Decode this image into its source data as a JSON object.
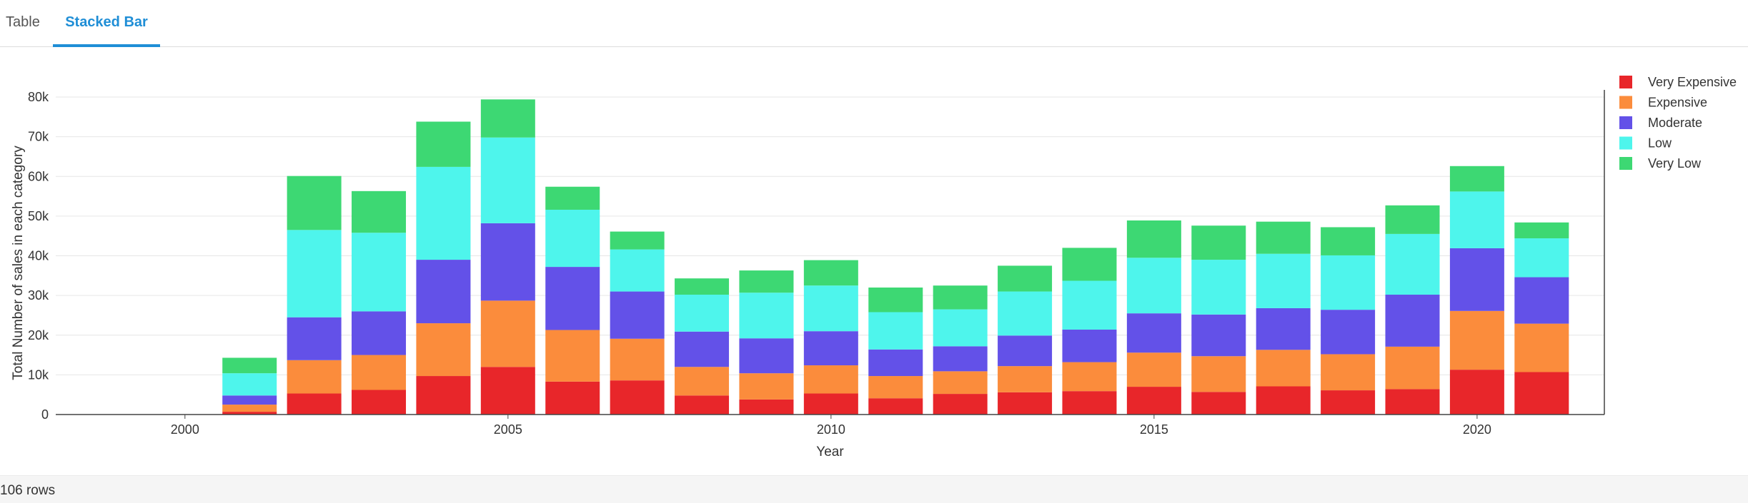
{
  "tabs": [
    {
      "label": "Table",
      "active": false
    },
    {
      "label": "Stacked Bar",
      "active": true
    }
  ],
  "footer": {
    "row_count": "106 rows"
  },
  "chart_data": {
    "type": "bar",
    "stacked": true,
    "title": "",
    "xlabel": "Year",
    "ylabel": "Total Number of sales in each category",
    "x": [
      2001,
      2002,
      2003,
      2004,
      2005,
      2006,
      2007,
      2008,
      2009,
      2010,
      2011,
      2012,
      2013,
      2014,
      2015,
      2016,
      2017,
      2018,
      2019,
      2020,
      2021
    ],
    "xlim": [
      1998,
      2021.97
    ],
    "xticks": [
      2000,
      2005,
      2010,
      2015,
      2020
    ],
    "ylim": [
      0,
      80000
    ],
    "yticks": [
      0,
      10000,
      20000,
      30000,
      40000,
      50000,
      60000,
      70000,
      80000
    ],
    "ytick_labels": [
      "0",
      "10k",
      "20k",
      "30k",
      "40k",
      "50k",
      "60k",
      "70k",
      "80k"
    ],
    "grid": true,
    "legend_position": "top-right",
    "series": [
      {
        "name": "Very Expensive",
        "color": "#e8262a",
        "values": [
          700,
          5300,
          6200,
          9700,
          12000,
          8300,
          8600,
          4800,
          3800,
          5300,
          4100,
          5200,
          5600,
          5900,
          7000,
          5700,
          7100,
          6100,
          6400,
          11300,
          10700
        ]
      },
      {
        "name": "Expensive",
        "color": "#fb8c3c",
        "values": [
          1800,
          8400,
          8800,
          13300,
          16700,
          13000,
          10500,
          7200,
          6600,
          7100,
          5600,
          5700,
          6600,
          7300,
          8600,
          9000,
          9200,
          9100,
          10700,
          14800,
          12200
        ]
      },
      {
        "name": "Moderate",
        "color": "#6351e8",
        "values": [
          2300,
          10800,
          11000,
          16000,
          19500,
          15900,
          11900,
          8900,
          8800,
          8600,
          6700,
          6300,
          7700,
          8200,
          9900,
          10500,
          10500,
          11200,
          13100,
          15800,
          11700
        ]
      },
      {
        "name": "Low",
        "color": "#4ef5ec",
        "values": [
          5600,
          22000,
          19800,
          23400,
          21600,
          14400,
          10600,
          9300,
          11500,
          11500,
          9400,
          9300,
          11100,
          12300,
          14000,
          13800,
          13700,
          13700,
          15300,
          14300,
          9800
        ]
      },
      {
        "name": "Very Low",
        "color": "#3dd873",
        "values": [
          3900,
          13600,
          10500,
          11400,
          9600,
          5800,
          4500,
          4100,
          5600,
          6400,
          6200,
          6000,
          6500,
          8300,
          9400,
          8600,
          8100,
          7100,
          7200,
          6400,
          4000
        ]
      }
    ]
  }
}
